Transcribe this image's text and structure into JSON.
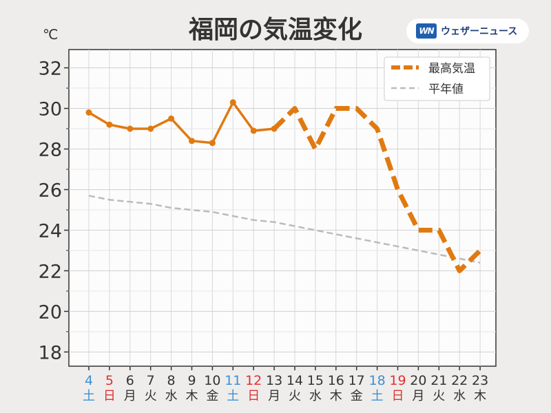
{
  "header": {
    "title": "福岡の気温変化",
    "unit": "℃",
    "logo_mark": "WN",
    "logo_text": "ウェザーニュース"
  },
  "colors": {
    "max_temp": "#e07a10",
    "normal": "#bbbbbb",
    "saturday": "#3b8fd6",
    "sunday": "#e03030",
    "weekday": "#333333"
  },
  "chart_data": {
    "type": "line",
    "title": "福岡の気温変化",
    "ylabel": "℃",
    "ylim": [
      17.3,
      32.9
    ],
    "yticks": [
      18,
      20,
      22,
      24,
      26,
      28,
      30,
      32
    ],
    "grid": true,
    "legend_position": "top-right",
    "x": [
      4,
      5,
      6,
      7,
      8,
      9,
      10,
      11,
      12,
      13,
      14,
      15,
      16,
      17,
      18,
      19,
      20,
      21,
      22,
      23
    ],
    "weekdays": [
      "土",
      "日",
      "月",
      "火",
      "水",
      "木",
      "金",
      "土",
      "日",
      "月",
      "火",
      "水",
      "木",
      "金",
      "土",
      "日",
      "月",
      "火",
      "水",
      "木"
    ],
    "series": [
      {
        "name": "最高気温",
        "observed_through": 13,
        "values": [
          29.8,
          29.2,
          29.0,
          29.0,
          29.5,
          28.4,
          28.3,
          30.3,
          28.9,
          29.0,
          30.0,
          28.0,
          30.0,
          30.0,
          29.0,
          26.0,
          24.0,
          24.0,
          22.0,
          23.0
        ]
      },
      {
        "name": "平年値",
        "values": [
          25.7,
          25.5,
          25.4,
          25.3,
          25.1,
          25.0,
          24.9,
          24.7,
          24.5,
          24.4,
          24.2,
          24.0,
          23.8,
          23.6,
          23.4,
          23.2,
          23.0,
          22.8,
          22.6,
          22.4
        ]
      }
    ]
  }
}
